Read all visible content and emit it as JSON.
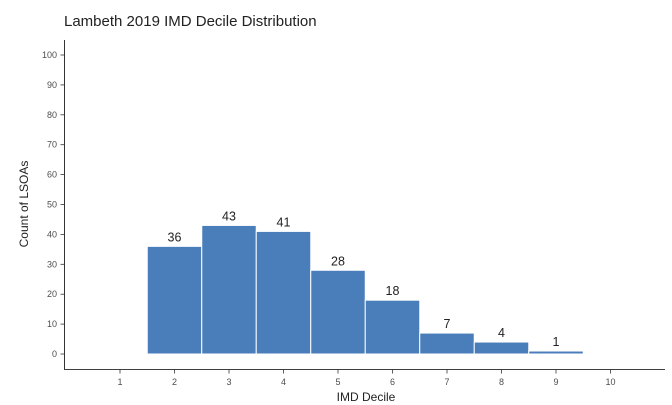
{
  "chart_data": {
    "type": "bar",
    "title": "Lambeth 2019 IMD Decile Distribution",
    "xlabel": "IMD Decile",
    "ylabel": "Count of LSOAs",
    "x_ticks": [
      "1",
      "2",
      "3",
      "4",
      "5",
      "6",
      "7",
      "8",
      "9",
      "10"
    ],
    "y_ticks": [
      "0",
      "10",
      "20",
      "30",
      "40",
      "50",
      "60",
      "70",
      "80",
      "90",
      "100"
    ],
    "categories": [
      "2",
      "3",
      "4",
      "5",
      "6",
      "7",
      "8",
      "9"
    ],
    "values": [
      36,
      43,
      41,
      28,
      18,
      7,
      4,
      1
    ],
    "data_labels": [
      "36",
      "43",
      "41",
      "28",
      "18",
      "7",
      "4",
      "1"
    ],
    "xlim": [
      0.5,
      10.5
    ],
    "ylim": [
      0,
      100
    ],
    "grid": false,
    "legend": "none",
    "bar_color": "#4a7ebb",
    "bar_edge_color": "#ffffff"
  }
}
